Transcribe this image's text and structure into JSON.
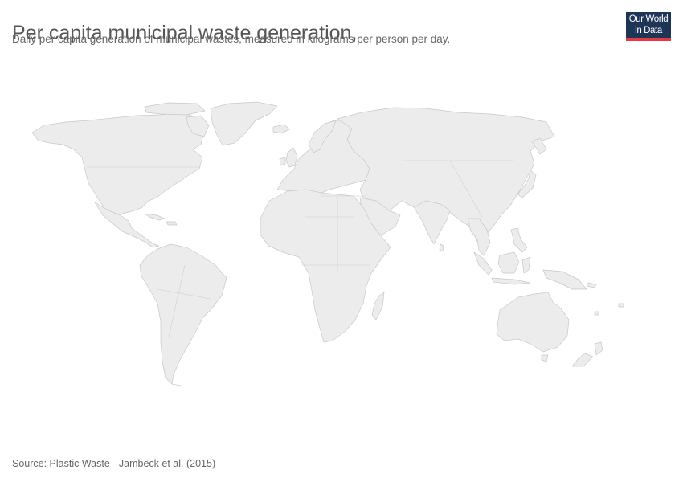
{
  "header": {
    "title": "Per capita municipal waste generation,",
    "subtitle": "Daily per capita generation of municipal wastes, measured in kilograms per person per day."
  },
  "logo": {
    "line1": "Our World",
    "line2": "in Data",
    "bg_color": "#1d3557",
    "accent_color": "#e63946"
  },
  "map": {
    "type": "choropleth-world",
    "land_color": "#ececec",
    "border_color": "#c8c8c8"
  },
  "footer": {
    "source": "Source: Plastic Waste - Jambeck et al. (2015)"
  }
}
